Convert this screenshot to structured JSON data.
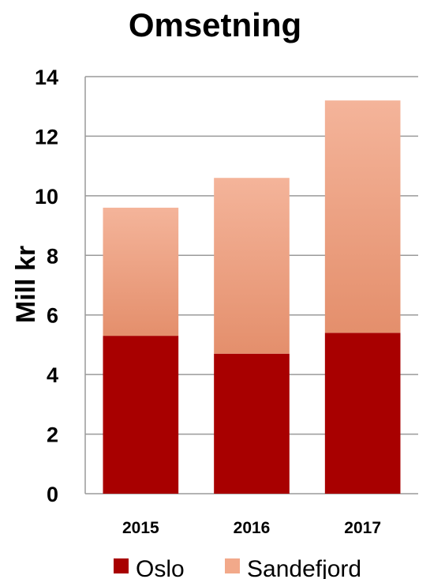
{
  "chart_data": {
    "type": "bar",
    "stacked": true,
    "title": "Omsetning",
    "ylabel": "Mill kr",
    "xlabel": "",
    "categories": [
      "2015",
      "2016",
      "2017"
    ],
    "ylim": [
      0,
      14
    ],
    "yticks": [
      "0",
      "2",
      "4",
      "6",
      "8",
      "10",
      "12",
      "14"
    ],
    "grid": true,
    "legend_position": "bottom",
    "series": [
      {
        "name": "Oslo",
        "values": [
          5.3,
          4.7,
          5.4
        ],
        "color": "#a80000"
      },
      {
        "name": "Sandefjord",
        "values": [
          4.3,
          5.9,
          7.8
        ],
        "color": "#f2a98a"
      }
    ]
  }
}
